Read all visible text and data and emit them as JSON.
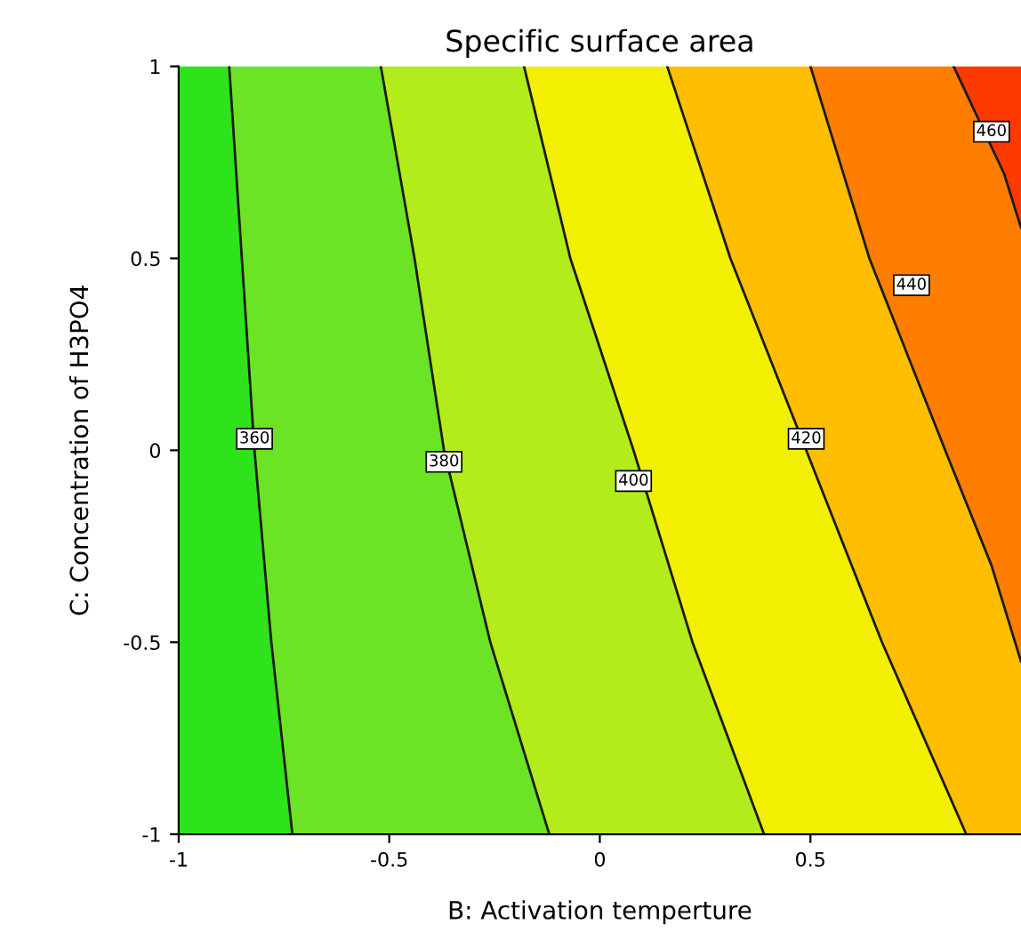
{
  "chart_data": {
    "type": "line",
    "title": "Specific surface area",
    "xlabel": "B: Activation temperture",
    "ylabel": "C: Concentration of H3PO4",
    "xlim": [
      -1,
      1
    ],
    "ylim": [
      -1,
      1
    ],
    "xticks": [
      -1,
      -0.5,
      0,
      0.5
    ],
    "yticks": [
      -1,
      -0.5,
      0,
      0.5,
      1
    ],
    "grid": false,
    "legend": false,
    "marker": "none",
    "line_style": "solid",
    "colors": [
      "#2ee21c",
      "#6ae424",
      "#b2ec1a",
      "#f2f000",
      "#ffbe00",
      "#ff7e00",
      "#ff3a00"
    ],
    "series": [
      {
        "color": "#1a1a1a",
        "x": [
          -0.88,
          -0.85,
          -0.82,
          -0.78,
          -0.73
        ],
        "values": [
          1,
          0.5,
          0,
          -0.5,
          -1
        ]
      },
      {
        "color": "#1a1a1a",
        "x": [
          -0.52,
          -0.44,
          -0.37,
          -0.26,
          -0.12
        ],
        "values": [
          1,
          0.5,
          0,
          -0.5,
          -1
        ]
      },
      {
        "color": "#1a1a1a",
        "x": [
          -0.18,
          -0.07,
          0.08,
          0.22,
          0.39
        ],
        "values": [
          1,
          0.5,
          0,
          -0.5,
          -1
        ]
      },
      {
        "color": "#1a1a1a",
        "x": [
          0.16,
          0.31,
          0.49,
          0.67,
          0.87
        ],
        "values": [
          1,
          0.5,
          0,
          -0.5,
          -1
        ]
      },
      {
        "color": "#1a1a1a",
        "x": [
          0.5,
          0.64,
          0.82,
          0.93,
          1
        ],
        "values": [
          1,
          0.5,
          0,
          -0.3,
          -0.55
        ]
      },
      {
        "color": "#1a1a1a",
        "x": [
          0.84,
          0.96,
          1
        ],
        "values": [
          1,
          0.72,
          0.58
        ]
      }
    ],
    "annotations": [
      {
        "text": "360",
        "x": -0.82,
        "y": 0.03
      },
      {
        "text": "380",
        "x": -0.37,
        "y": -0.03
      },
      {
        "text": "400",
        "x": 0.08,
        "y": -0.08
      },
      {
        "text": "420",
        "x": 0.49,
        "y": 0.03
      },
      {
        "text": "440",
        "x": 0.74,
        "y": 0.43
      },
      {
        "text": "460",
        "x": 0.93,
        "y": 0.83
      }
    ]
  }
}
